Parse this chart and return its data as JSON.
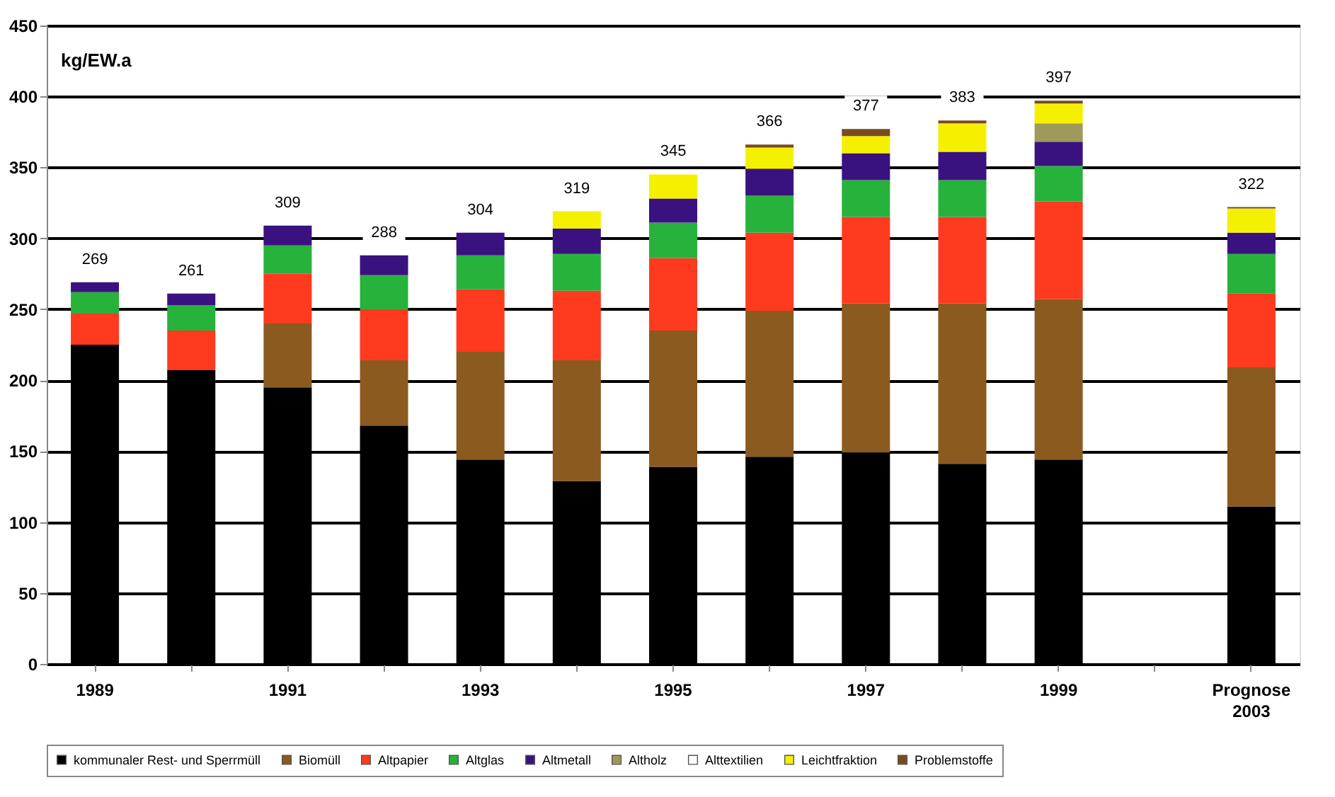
{
  "chart_data": {
    "type": "bar",
    "stacked": true,
    "ylabel": "kg/EW.a",
    "categories": [
      "1989",
      null,
      "1991",
      null,
      "1993",
      null,
      "1995",
      null,
      "1997",
      null,
      "1999",
      null,
      "Prognose 2003"
    ],
    "series": [
      {
        "name": "kommunaler Rest- und Sperrmüll",
        "color": "#000000",
        "values": [
          225,
          207,
          195,
          168,
          144,
          129,
          139,
          146,
          149,
          141,
          144,
          null,
          111
        ]
      },
      {
        "name": "Biomüll",
        "color": "#8b5a1e",
        "values": [
          0,
          0,
          45,
          46,
          76,
          85,
          96,
          103,
          105,
          113,
          113,
          null,
          98
        ]
      },
      {
        "name": "Altpapier",
        "color": "#ff3a1e",
        "values": [
          22,
          28,
          35,
          36,
          44,
          49,
          51,
          55,
          61,
          61,
          69,
          null,
          52
        ]
      },
      {
        "name": "Altglas",
        "color": "#27b23c",
        "values": [
          15,
          18,
          20,
          24,
          24,
          26,
          25,
          26,
          26,
          26,
          25,
          null,
          28
        ]
      },
      {
        "name": "Altmetall",
        "color": "#3a1280",
        "values": [
          7,
          8,
          14,
          14,
          16,
          18,
          17,
          19,
          19,
          20,
          17,
          null,
          15
        ]
      },
      {
        "name": "Altholz",
        "color": "#a09a5a",
        "values": [
          0,
          0,
          0,
          0,
          0,
          0,
          0,
          0,
          0,
          0,
          13,
          null,
          0
        ]
      },
      {
        "name": "Alttextilien",
        "color": "#ffffff",
        "values": [
          0,
          0,
          0,
          0,
          0,
          0,
          0,
          0,
          0,
          0,
          0,
          null,
          0
        ]
      },
      {
        "name": "Leichtfraktion",
        "color": "#f5f000",
        "values": [
          0,
          0,
          0,
          0,
          0,
          12,
          17,
          15,
          12,
          20,
          14,
          null,
          17
        ]
      },
      {
        "name": "Problemstoffe",
        "color": "#7a4a20",
        "values": [
          0,
          0,
          0,
          0,
          0,
          0,
          0,
          2,
          5,
          2,
          2,
          null,
          1
        ]
      }
    ],
    "totals": [
      "269",
      "261",
      "309",
      "288",
      "304",
      "319",
      "345",
      "366",
      "377",
      "383",
      "397",
      null,
      "322"
    ],
    "ylim": [
      0,
      450
    ],
    "yticks": [
      0,
      50,
      100,
      150,
      200,
      250,
      300,
      350,
      400,
      450
    ],
    "grid": "y",
    "legend": "bottom"
  }
}
